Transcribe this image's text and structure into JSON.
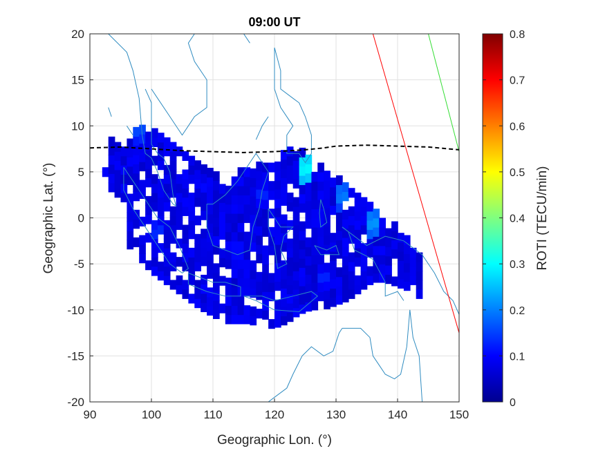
{
  "chart_data": {
    "type": "heatmap",
    "title": "09:00 UT",
    "xlabel": "Geographic Lon. (°)",
    "ylabel": "Geographic Lat. (°)",
    "xlim": [
      90,
      150
    ],
    "ylim": [
      -20,
      20
    ],
    "xticks": [
      "90",
      "100",
      "110",
      "120",
      "130",
      "140",
      "150"
    ],
    "yticks": [
      "20",
      "15",
      "10",
      "5",
      "0",
      "-5",
      "-10",
      "-15",
      "-20"
    ],
    "grid": true,
    "colorbar": {
      "label": "ROTI (TECU/min)",
      "range": [
        0,
        0.8
      ],
      "ticks": [
        "0",
        "0.1",
        "0.2",
        "0.3",
        "0.4",
        "0.5",
        "0.6",
        "0.7",
        "0.8"
      ],
      "colormap": "jet"
    },
    "magnetic_equator": {
      "style": "black-dashed",
      "points": [
        [
          90,
          7.6
        ],
        [
          95,
          7.7
        ],
        [
          100,
          7.5
        ],
        [
          105,
          7.3
        ],
        [
          110,
          7.2
        ],
        [
          115,
          7.1
        ],
        [
          120,
          7.2
        ],
        [
          125,
          7.4
        ],
        [
          128,
          7.6
        ],
        [
          130,
          7.8
        ],
        [
          135,
          7.9
        ],
        [
          140,
          7.8
        ],
        [
          145,
          7.7
        ],
        [
          150,
          7.4
        ]
      ]
    },
    "lines": [
      {
        "color": "#ff0000",
        "points": [
          [
            136,
            20
          ],
          [
            150,
            -12.5
          ]
        ]
      },
      {
        "color": "#33dd33",
        "points": [
          [
            145,
            20
          ],
          [
            150,
            7.2
          ]
        ]
      }
    ],
    "coast_color": "#2e8bc0",
    "background_roti": 0.08,
    "highlights": [
      {
        "lon": 98,
        "lat": 9,
        "roti": 0.18
      },
      {
        "lon": 125,
        "lat": 5,
        "roti": 0.32
      },
      {
        "lon": 131,
        "lat": 2,
        "roti": 0.22
      },
      {
        "lon": 136,
        "lat": -1,
        "roti": 0.24
      },
      {
        "lon": 101,
        "lat": -2,
        "roti": 0.16
      },
      {
        "lon": 114,
        "lat": -4,
        "roti": 0.14
      },
      {
        "lon": 128,
        "lat": -7,
        "roti": 0.15
      },
      {
        "lon": 104,
        "lat": -10,
        "roti": 0.14
      },
      {
        "lon": 118,
        "lat": 2,
        "roti": 0.15
      },
      {
        "lon": 109,
        "lat": 3,
        "roti": 0.13
      }
    ]
  }
}
